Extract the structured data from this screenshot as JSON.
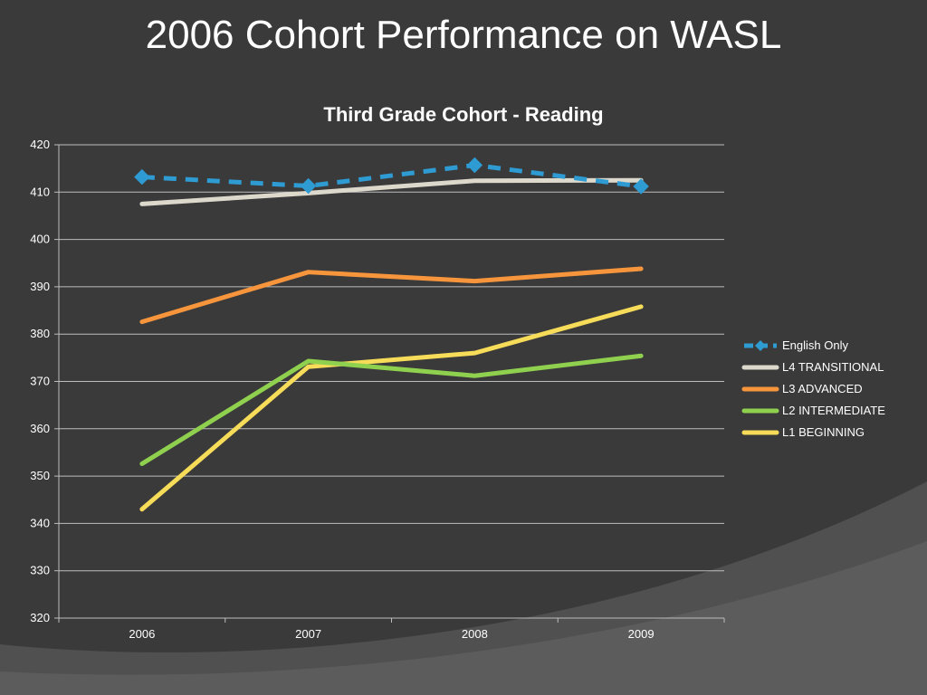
{
  "slide_title": "2006 Cohort Performance on WASL",
  "chart_data": {
    "type": "line",
    "title": "Third Grade Cohort - Reading",
    "xlabel": "",
    "ylabel": "",
    "categories": [
      "2006",
      "2007",
      "2008",
      "2009"
    ],
    "ylim": [
      320,
      420
    ],
    "yticks": [
      320,
      330,
      340,
      350,
      360,
      370,
      380,
      390,
      400,
      410,
      420
    ],
    "grid": true,
    "legend_position": "right",
    "series": [
      {
        "name": "English Only",
        "values": [
          413.2,
          411.3,
          415.7,
          411.2
        ],
        "color": "#2e9bd3",
        "dashed": true,
        "marker": "diamond"
      },
      {
        "name": "L4 TRANSITIONAL",
        "values": [
          407.5,
          409.8,
          412.4,
          412.5
        ],
        "color": "#dcd8cc",
        "dashed": false
      },
      {
        "name": "L3 ADVANCED",
        "values": [
          382.6,
          393.1,
          391.2,
          393.8
        ],
        "color": "#f7953c",
        "dashed": false
      },
      {
        "name": "L2 INTERMEDIATE",
        "values": [
          352.6,
          374.3,
          371.2,
          375.4
        ],
        "color": "#8fd14f",
        "dashed": false
      },
      {
        "name": "L1 BEGINNING",
        "values": [
          343.0,
          373.1,
          376.0,
          385.8
        ],
        "color": "#f6dc58",
        "dashed": false
      }
    ]
  }
}
